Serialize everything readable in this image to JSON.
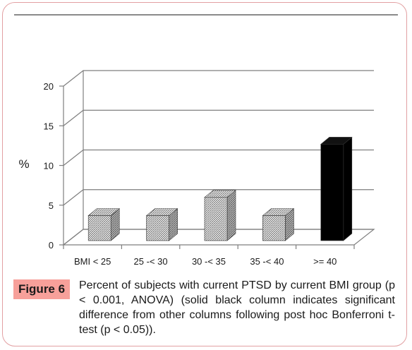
{
  "figure": {
    "label": "Figure 6",
    "caption": "Percent of subjects with current PTSD by current BMI group (p < 0.001, ANOVA) (solid black column indicates significant difference from other columns following post hoc Bonferroni t-test (p < 0.05))."
  },
  "colors": {
    "border": "#e2a0a2",
    "badge": "#f7a09a",
    "highlight_bar": "#000000",
    "hatched_bar": "#d9d9d9"
  },
  "chart_data": {
    "type": "bar",
    "style": "3d",
    "categories": [
      "BMI < 25",
      "25 -< 30",
      "30 -< 35",
      "35 -< 40",
      ">= 40"
    ],
    "values": [
      3.5,
      3.5,
      5.8,
      3.5,
      12.5
    ],
    "highlighted": [
      false,
      false,
      false,
      false,
      true
    ],
    "ylabel": "%",
    "ylim": [
      0,
      20
    ],
    "yticks": [
      "0",
      "5",
      "10",
      "15",
      "20"
    ],
    "grid": true
  }
}
